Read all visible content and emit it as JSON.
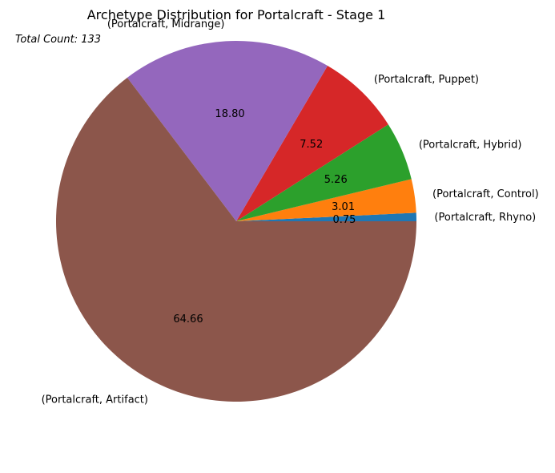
{
  "chart_data": {
    "type": "pie",
    "title": "Archetype Distribution for Portalcraft - Stage 1",
    "annotation": "Total Count: 133",
    "categories": [
      "(Portalcraft, Rhyno)",
      "(Portalcraft, Control)",
      "(Portalcraft, Hybrid)",
      "(Portalcraft, Puppet)",
      "(Portalcraft, Midrange)",
      "(Portalcraft, Artifact)"
    ],
    "values": [
      0.75,
      3.01,
      5.26,
      7.52,
      18.8,
      64.66
    ],
    "value_labels": [
      "0.75",
      "3.01",
      "5.26",
      "7.52",
      "18.80",
      "64.66"
    ],
    "colors": [
      "#1f77b4",
      "#ff7f0e",
      "#2ca02c",
      "#d62728",
      "#9467bd",
      "#8c564b"
    ]
  }
}
